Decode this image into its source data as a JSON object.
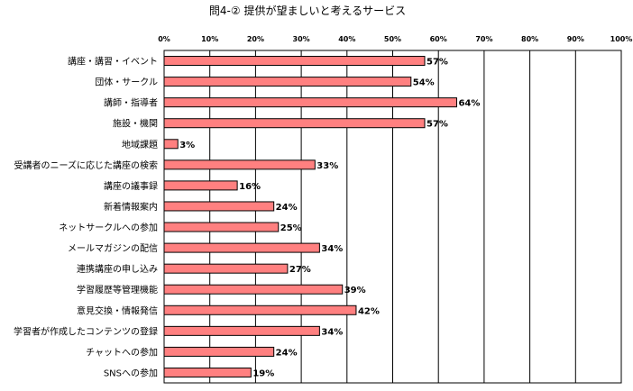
{
  "chart_data": {
    "type": "bar",
    "orientation": "horizontal",
    "title": "問4-② 提供が望ましいと考えるサービス",
    "xlabel": "",
    "ylabel": "",
    "xlim": [
      0,
      100
    ],
    "x_ticks": [
      "0%",
      "10%",
      "20%",
      "30%",
      "40%",
      "50%",
      "60%",
      "70%",
      "80%",
      "90%",
      "100%"
    ],
    "grid": "vertical",
    "legend": "none",
    "bar_color": "#FF8080",
    "categories": [
      "講座・講習・イベント",
      "団体・サークル",
      "講師・指導者",
      "施設・機関",
      "地域課題",
      "受講者のニーズに応じた講座の検索",
      "講座の議事録",
      "新着情報案内",
      "ネットサークルへの参加",
      "メールマガジンの配信",
      "連携講座の申し込み",
      "学習履歴等管理機能",
      "意見交換・情報発信",
      "学習者が作成したコンテンツの登録",
      "チャットへの参加",
      "SNSへの参加"
    ],
    "values": [
      57,
      54,
      64,
      57,
      3,
      33,
      16,
      24,
      25,
      34,
      27,
      39,
      42,
      34,
      24,
      19
    ],
    "data_labels": [
      "57%",
      "54%",
      "64%",
      "57%",
      "3%",
      "33%",
      "16%",
      "24%",
      "25%",
      "34%",
      "27%",
      "39%",
      "42%",
      "34%",
      "24%",
      "19%"
    ]
  }
}
